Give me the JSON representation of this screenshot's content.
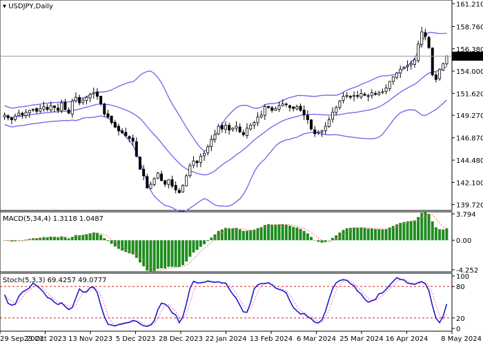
{
  "chart_data": {
    "type": "candlestick",
    "title": "USDJPY,Daily",
    "symbol": "USDJPY",
    "timeframe": "Daily",
    "price_axis": {
      "ylim": [
        139.1,
        161.6
      ],
      "ticks": [
        "161.210",
        "158.760",
        "156.380",
        "154.000",
        "151.620",
        "149.270",
        "146.870",
        "144.480",
        "142.100",
        "139.720"
      ]
    },
    "current_price": "155.593",
    "x_ticks": [
      "29 Sep 2023",
      "23 Oct 2023",
      "13 Nov 2023",
      "5 Dec 2023",
      "28 Dec 2023",
      "22 Jan 2024",
      "13 Feb 2024",
      "6 Mar 2024",
      "25 Mar 2024",
      "16 Apr 2024",
      "8 May 2024"
    ],
    "closes": [
      149.3,
      149.0,
      148.8,
      149.2,
      149.5,
      149.3,
      149.6,
      149.8,
      149.9,
      149.7,
      150.0,
      150.2,
      149.9,
      150.3,
      150.1,
      149.8,
      150.6,
      149.9,
      149.5,
      150.8,
      151.2,
      150.6,
      150.9,
      151.2,
      151.5,
      151.7,
      151.3,
      150.5,
      149.4,
      149.1,
      148.5,
      148.0,
      147.6,
      147.4,
      147.1,
      146.8,
      146.5,
      144.9,
      143.5,
      142.8,
      141.5,
      141.9,
      142.5,
      143.1,
      142.3,
      141.9,
      142.4,
      141.7,
      141.3,
      141.0,
      141.8,
      142.8,
      143.9,
      144.4,
      144.2,
      144.9,
      145.2,
      145.9,
      146.7,
      147.2,
      148.1,
      147.8,
      148.2,
      147.7,
      147.9,
      148.1,
      147.5,
      147.2,
      147.9,
      148.2,
      148.5,
      149.1,
      149.3,
      150.2,
      150.1,
      149.8,
      150.0,
      150.3,
      150.5,
      150.4,
      150.1,
      150.0,
      150.2,
      149.8,
      149.3,
      148.8,
      147.8,
      147.3,
      147.5,
      147.6,
      148.1,
      148.8,
      149.6,
      150.1,
      150.8,
      151.3,
      151.4,
      151.2,
      151.4,
      151.3,
      151.6,
      151.4,
      151.3,
      151.7,
      151.5,
      151.7,
      151.8,
      152.2,
      152.9,
      153.4,
      153.8,
      154.2,
      154.4,
      154.6,
      154.8,
      155.2,
      156.9,
      158.2,
      157.7,
      156.5,
      153.6,
      153.1,
      154.2,
      154.8,
      155.6
    ],
    "indicators": {
      "bollinger_bands": {
        "period": 20,
        "color": "#6a5acd"
      },
      "macd": {
        "label": "MACD(5,34,4) 1.3118 1.0487",
        "params": [
          5,
          34,
          4
        ],
        "main": 1.3118,
        "signal": 1.0487,
        "ylim": [
          -4.252,
          3.794
        ],
        "ticks": [
          "3.794",
          "0.00",
          "-4.252"
        ],
        "hist_color": "#228b22",
        "signal_color": "#ff6666"
      },
      "stochastic": {
        "label": "Stoch(5,3,3) 69.4257 49.0777",
        "params": [
          5,
          3,
          3
        ],
        "k": 69.4257,
        "d": 49.0777,
        "ylim": [
          0,
          100
        ],
        "ticks": [
          "100",
          "80",
          "20",
          "0"
        ],
        "levels": [
          20,
          80
        ],
        "k_color": "#0000cc",
        "d_color": "#ff6699"
      }
    }
  },
  "colors": {
    "background": "#ffffff",
    "candle": "#000000",
    "bollinger": "#7b68ee",
    "macd_hist": "#1f8c1f",
    "macd_signal": "#ff6666",
    "stoch_k": "#1a1acc",
    "stoch_d": "#ff66aa",
    "level_line": "#cc0000",
    "price_tag_bg": "#000000",
    "price_tag_text": "#ffffff"
  }
}
